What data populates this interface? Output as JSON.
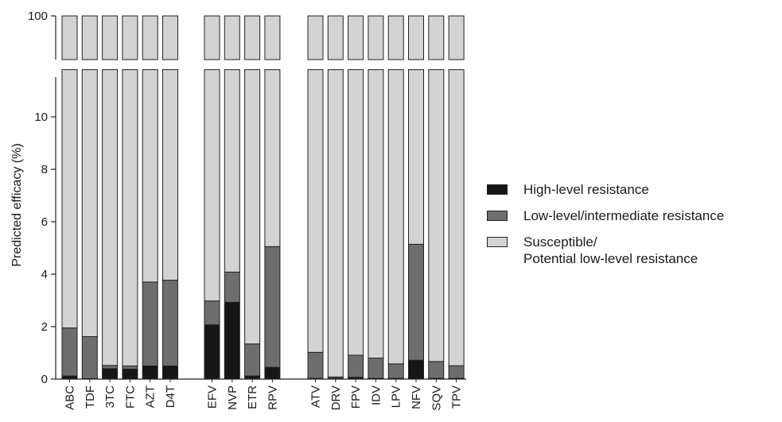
{
  "chart_data": {
    "type": "bar",
    "stacked": true,
    "ylabel": "Predicted efficacy (%)",
    "xlabel": "",
    "title": "",
    "ylim": [
      0,
      100
    ],
    "axis_break": {
      "lower_range": [
        0,
        11.8
      ],
      "upper_range": [
        99.7,
        100
      ]
    },
    "yticks": [
      "0",
      "2",
      "4",
      "6",
      "8",
      "10",
      "100"
    ],
    "groups": [
      [
        "ABC",
        "TDF",
        "3TC",
        "FTC",
        "AZT",
        "D4T"
      ],
      [
        "EFV",
        "NVP",
        "ETR",
        "RPV"
      ],
      [
        "ATV",
        "DRV",
        "FPV",
        "IDV",
        "LPV",
        "NFV",
        "SQV",
        "TPV"
      ]
    ],
    "categories": [
      "ABC",
      "TDF",
      "3TC",
      "FTC",
      "AZT",
      "D4T",
      "EFV",
      "NVP",
      "ETR",
      "RPV",
      "ATV",
      "DRV",
      "FPV",
      "IDV",
      "LPV",
      "NFV",
      "SQV",
      "TPV"
    ],
    "series": [
      {
        "name": "High-level resistance",
        "color": "#161616",
        "values": [
          0.12,
          0.02,
          0.4,
          0.38,
          0.5,
          0.5,
          2.07,
          2.93,
          0.12,
          0.45,
          0.03,
          0.03,
          0.07,
          0.03,
          0.03,
          0.72,
          0.03,
          0.03
        ]
      },
      {
        "name": "Low-level/intermediate resistance",
        "color": "#6e6e6e",
        "values": [
          1.83,
          1.6,
          0.12,
          0.12,
          3.2,
          3.27,
          0.91,
          1.15,
          1.22,
          4.6,
          0.99,
          0.05,
          0.84,
          0.77,
          0.55,
          4.42,
          0.64,
          0.48
        ]
      },
      {
        "name": "Susceptible/\nPotential low-level resistance",
        "color": "#d3d3d3",
        "values": [
          98.05,
          98.38,
          99.48,
          99.5,
          96.3,
          96.23,
          97.02,
          95.92,
          98.66,
          94.95,
          98.98,
          99.92,
          99.09,
          99.2,
          99.42,
          94.86,
          99.33,
          99.49
        ]
      }
    ],
    "legend": {
      "placement": "right",
      "entries": [
        "High-level resistance",
        "Low-level/intermediate resistance",
        "Susceptible/",
        "Potential low-level resistance"
      ]
    },
    "grid": false
  }
}
